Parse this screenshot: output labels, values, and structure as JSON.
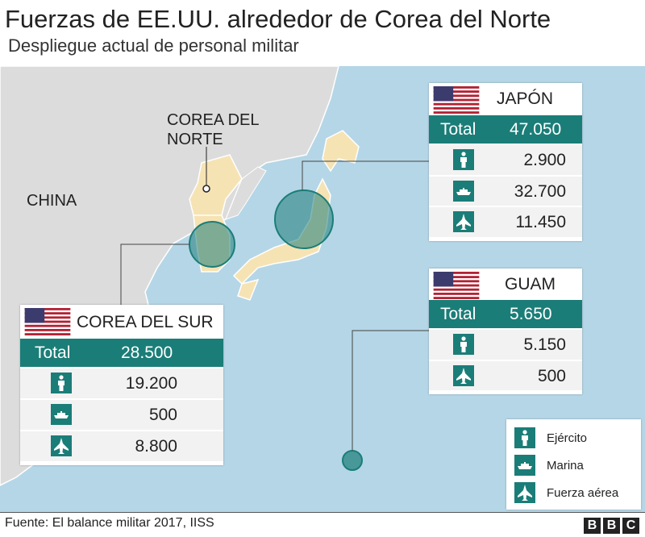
{
  "header": {
    "title": "Fuerzas de EE.UU. alrededor de Corea del Norte",
    "subtitle": "Despliegue actual de personal militar"
  },
  "map_labels": {
    "china": "CHINA",
    "north_korea": "COREA DEL\nNORTE"
  },
  "panels": {
    "japan": {
      "title": "JAPÓN",
      "total_label": "Total",
      "total": "47.050",
      "army": "2.900",
      "navy": "32.700",
      "air": "11.450"
    },
    "guam": {
      "title": "GUAM",
      "total_label": "Total",
      "total": "5.650",
      "army": "5.150",
      "air": "500"
    },
    "south_korea": {
      "title": "COREA DEL SUR",
      "total_label": "Total",
      "total": "28.500",
      "army": "19.200",
      "navy": "500",
      "air": "8.800"
    }
  },
  "legend": {
    "army": "Ejército",
    "navy": "Marina",
    "air": "Fuerza aérea"
  },
  "footer": {
    "source": "Fuente: El balance militar 2017, IISS",
    "logo": "BBC"
  }
}
